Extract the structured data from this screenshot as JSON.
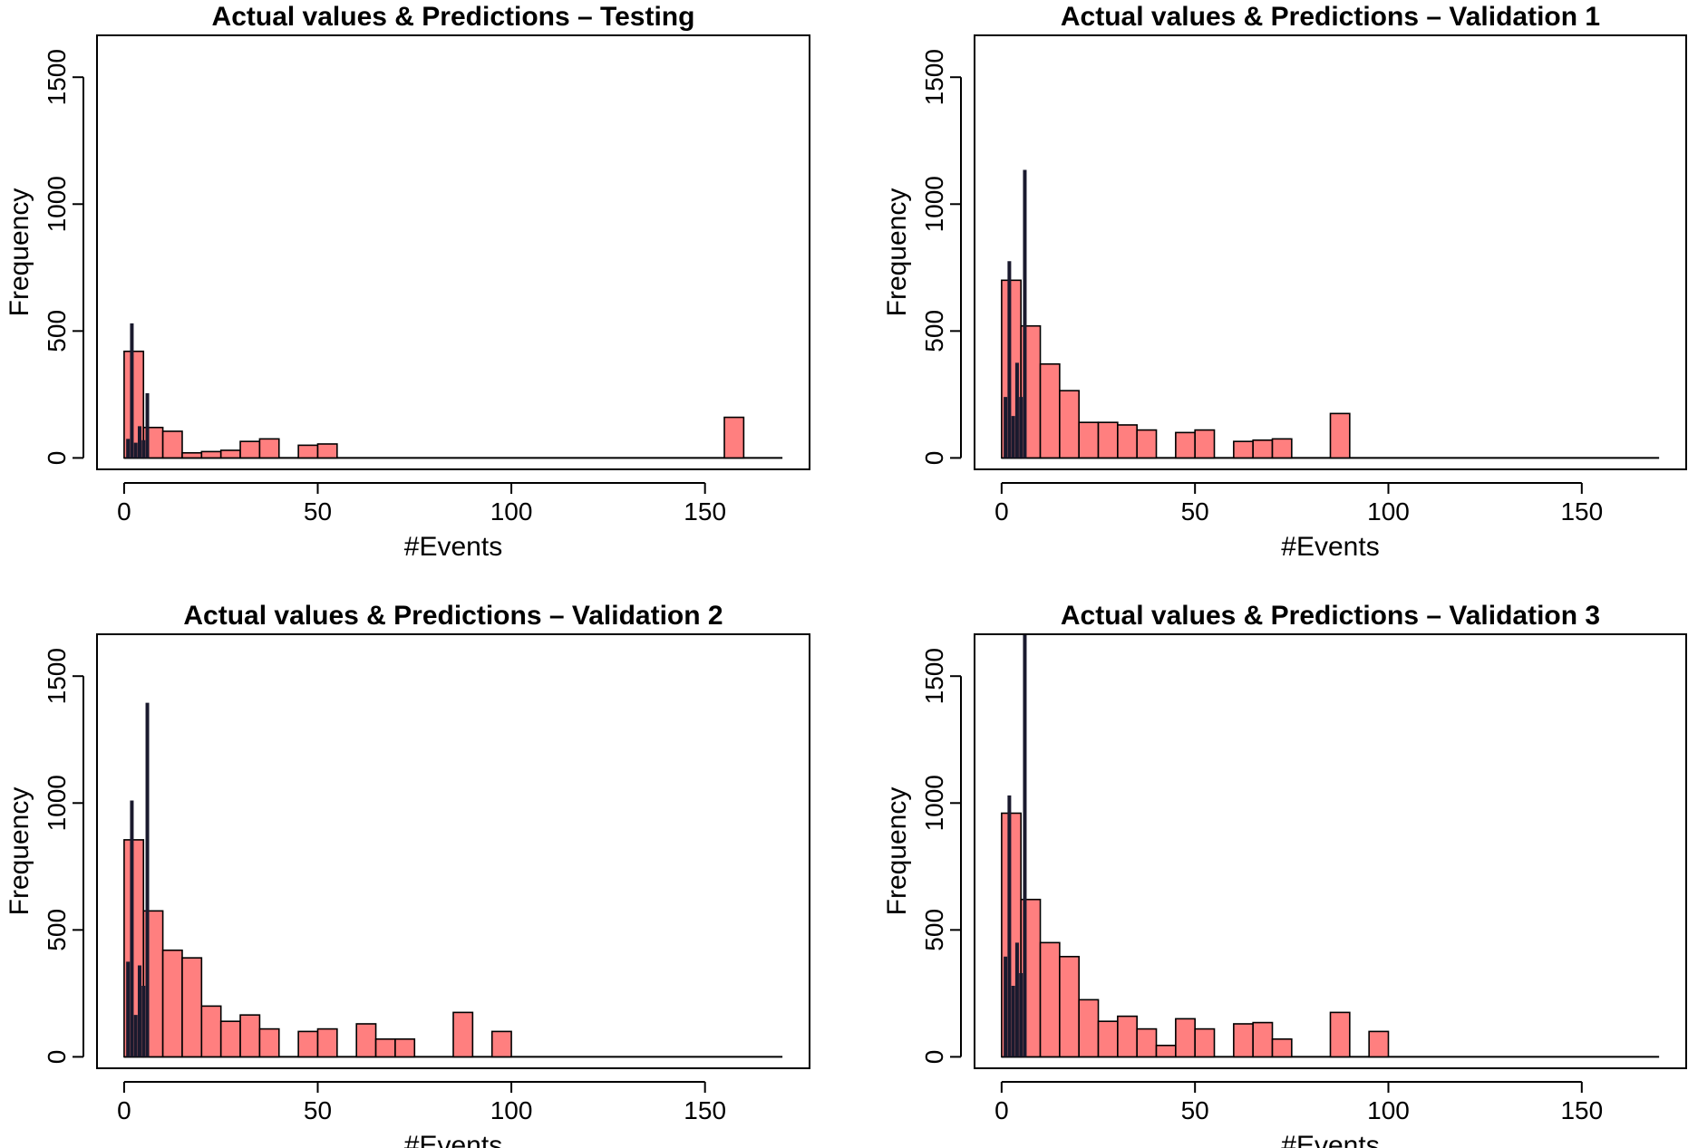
{
  "figure": {
    "colors": {
      "histogram_fill": "#ff7f7f",
      "prediction_line": "#1a1a2e",
      "axis": "#000000"
    }
  },
  "chart_data": [
    {
      "type": "bar",
      "title": "Actual values & Predictions – Testing",
      "xlabel": "#Events",
      "ylabel": "Frequency",
      "xlim": [
        -7,
        177
      ],
      "ylim": [
        -45,
        1665
      ],
      "x_ticks": [
        0,
        50,
        100,
        150
      ],
      "y_ticks": [
        0,
        500,
        1000,
        1500
      ],
      "bin_width": 5,
      "series": [
        {
          "role": "histogram",
          "bins": [
            {
              "start": 0,
              "end": 5,
              "count": 420
            },
            {
              "start": 5,
              "end": 10,
              "count": 120
            },
            {
              "start": 10,
              "end": 15,
              "count": 105
            },
            {
              "start": 15,
              "end": 20,
              "count": 20
            },
            {
              "start": 20,
              "end": 25,
              "count": 25
            },
            {
              "start": 25,
              "end": 30,
              "count": 30
            },
            {
              "start": 30,
              "end": 35,
              "count": 65
            },
            {
              "start": 35,
              "end": 40,
              "count": 75
            },
            {
              "start": 45,
              "end": 50,
              "count": 50
            },
            {
              "start": 50,
              "end": 55,
              "count": 55
            },
            {
              "start": 155,
              "end": 160,
              "count": 160
            }
          ]
        },
        {
          "role": "predictions",
          "points": [
            {
              "x": 1,
              "y": 75
            },
            {
              "x": 2,
              "y": 530
            },
            {
              "x": 3,
              "y": 60
            },
            {
              "x": 4,
              "y": 125
            },
            {
              "x": 5,
              "y": 70
            },
            {
              "x": 6,
              "y": 255
            }
          ]
        }
      ]
    },
    {
      "type": "bar",
      "title": "Actual values & Predictions – Validation 1",
      "xlabel": "#Events",
      "ylabel": "Frequency",
      "xlim": [
        -7,
        177
      ],
      "ylim": [
        -45,
        1665
      ],
      "x_ticks": [
        0,
        50,
        100,
        150
      ],
      "y_ticks": [
        0,
        500,
        1000,
        1500
      ],
      "bin_width": 5,
      "series": [
        {
          "role": "histogram",
          "bins": [
            {
              "start": 0,
              "end": 5,
              "count": 700
            },
            {
              "start": 5,
              "end": 10,
              "count": 520
            },
            {
              "start": 10,
              "end": 15,
              "count": 370
            },
            {
              "start": 15,
              "end": 20,
              "count": 265
            },
            {
              "start": 20,
              "end": 25,
              "count": 140
            },
            {
              "start": 25,
              "end": 30,
              "count": 140
            },
            {
              "start": 30,
              "end": 35,
              "count": 130
            },
            {
              "start": 35,
              "end": 40,
              "count": 110
            },
            {
              "start": 45,
              "end": 50,
              "count": 100
            },
            {
              "start": 50,
              "end": 55,
              "count": 110
            },
            {
              "start": 60,
              "end": 65,
              "count": 65
            },
            {
              "start": 65,
              "end": 70,
              "count": 70
            },
            {
              "start": 70,
              "end": 75,
              "count": 75
            },
            {
              "start": 85,
              "end": 90,
              "count": 175
            }
          ]
        },
        {
          "role": "predictions",
          "points": [
            {
              "x": 1,
              "y": 240
            },
            {
              "x": 2,
              "y": 775
            },
            {
              "x": 3,
              "y": 165
            },
            {
              "x": 4,
              "y": 375
            },
            {
              "x": 5,
              "y": 240
            },
            {
              "x": 6,
              "y": 1135
            }
          ]
        }
      ]
    },
    {
      "type": "bar",
      "title": "Actual values & Predictions – Validation 2",
      "xlabel": "#Events",
      "ylabel": "Frequency",
      "xlim": [
        -7,
        177
      ],
      "ylim": [
        -45,
        1665
      ],
      "x_ticks": [
        0,
        50,
        100,
        150
      ],
      "y_ticks": [
        0,
        500,
        1000,
        1500
      ],
      "bin_width": 5,
      "series": [
        {
          "role": "histogram",
          "bins": [
            {
              "start": 0,
              "end": 5,
              "count": 855
            },
            {
              "start": 5,
              "end": 10,
              "count": 575
            },
            {
              "start": 10,
              "end": 15,
              "count": 420
            },
            {
              "start": 15,
              "end": 20,
              "count": 390
            },
            {
              "start": 20,
              "end": 25,
              "count": 200
            },
            {
              "start": 25,
              "end": 30,
              "count": 140
            },
            {
              "start": 30,
              "end": 35,
              "count": 165
            },
            {
              "start": 35,
              "end": 40,
              "count": 110
            },
            {
              "start": 45,
              "end": 50,
              "count": 100
            },
            {
              "start": 50,
              "end": 55,
              "count": 110
            },
            {
              "start": 60,
              "end": 65,
              "count": 130
            },
            {
              "start": 65,
              "end": 70,
              "count": 70
            },
            {
              "start": 70,
              "end": 75,
              "count": 70
            },
            {
              "start": 85,
              "end": 90,
              "count": 175
            },
            {
              "start": 95,
              "end": 100,
              "count": 100
            }
          ]
        },
        {
          "role": "predictions",
          "points": [
            {
              "x": 1,
              "y": 375
            },
            {
              "x": 2,
              "y": 1010
            },
            {
              "x": 3,
              "y": 165
            },
            {
              "x": 4,
              "y": 360
            },
            {
              "x": 5,
              "y": 280
            },
            {
              "x": 6,
              "y": 1395
            }
          ]
        }
      ]
    },
    {
      "type": "bar",
      "title": "Actual values & Predictions – Validation 3",
      "xlabel": "#Events",
      "ylabel": "Frequency",
      "xlim": [
        -7,
        177
      ],
      "ylim": [
        -45,
        1665
      ],
      "x_ticks": [
        0,
        50,
        100,
        150
      ],
      "y_ticks": [
        0,
        500,
        1000,
        1500
      ],
      "bin_width": 5,
      "series": [
        {
          "role": "histogram",
          "bins": [
            {
              "start": 0,
              "end": 5,
              "count": 960
            },
            {
              "start": 5,
              "end": 10,
              "count": 620
            },
            {
              "start": 10,
              "end": 15,
              "count": 450
            },
            {
              "start": 15,
              "end": 20,
              "count": 395
            },
            {
              "start": 20,
              "end": 25,
              "count": 225
            },
            {
              "start": 25,
              "end": 30,
              "count": 140
            },
            {
              "start": 30,
              "end": 35,
              "count": 160
            },
            {
              "start": 35,
              "end": 40,
              "count": 110
            },
            {
              "start": 40,
              "end": 45,
              "count": 45
            },
            {
              "start": 45,
              "end": 50,
              "count": 150
            },
            {
              "start": 50,
              "end": 55,
              "count": 110
            },
            {
              "start": 60,
              "end": 65,
              "count": 130
            },
            {
              "start": 65,
              "end": 70,
              "count": 135
            },
            {
              "start": 70,
              "end": 75,
              "count": 70
            },
            {
              "start": 85,
              "end": 90,
              "count": 175
            },
            {
              "start": 95,
              "end": 100,
              "count": 100
            }
          ]
        },
        {
          "role": "predictions",
          "points": [
            {
              "x": 1,
              "y": 395
            },
            {
              "x": 2,
              "y": 1030
            },
            {
              "x": 3,
              "y": 280
            },
            {
              "x": 4,
              "y": 450
            },
            {
              "x": 5,
              "y": 330
            },
            {
              "x": 6,
              "y": 1665
            }
          ]
        }
      ]
    }
  ]
}
